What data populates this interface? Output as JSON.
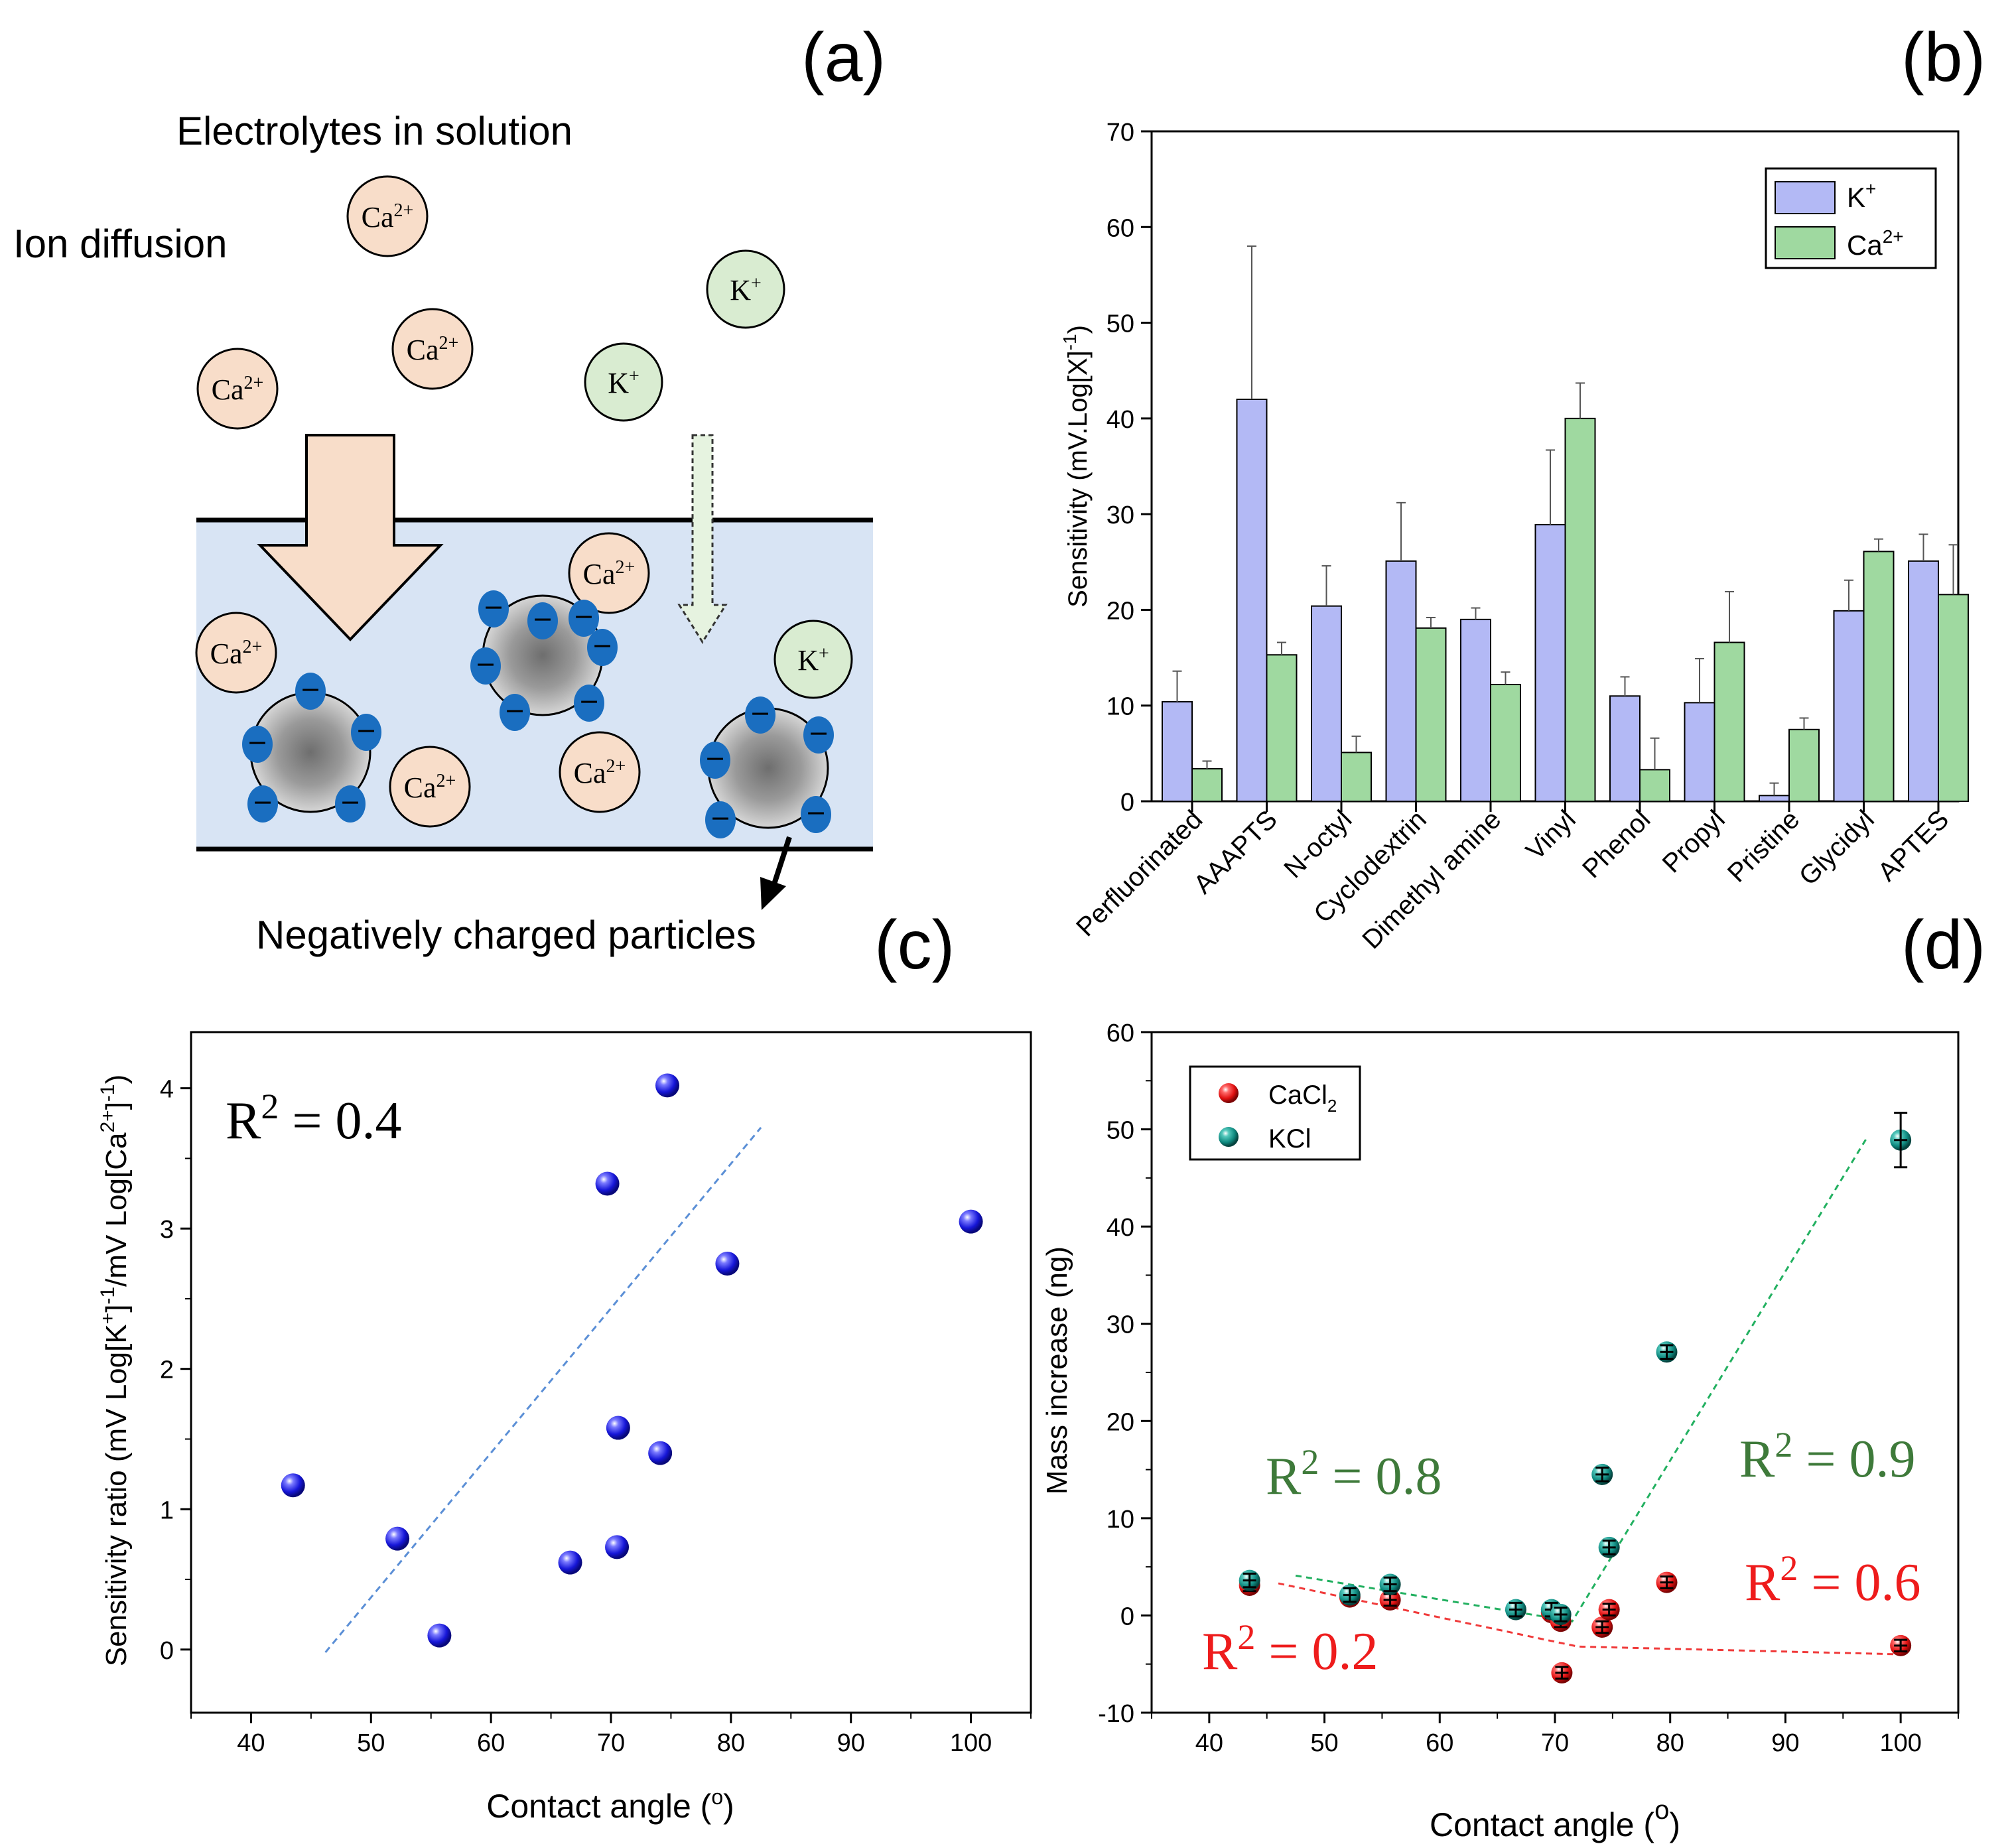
{
  "panel_labels": {
    "a": "(a)",
    "b": "(b)",
    "c": "(c)",
    "d": "(d)"
  },
  "colors": {
    "ca_ion_fill": "#f8ddc9",
    "k_ion_fill": "#d9ecd1",
    "medium_fill": "#d8e4f4",
    "arrow_fill": "#f8ddc9",
    "charge_blue": "#1a6ec0",
    "k_bar": "#b3b9f5",
    "ca_bar": "#9fd9a0",
    "scatter_blue": "#2a2ae0",
    "cacl2_red": "#e01010",
    "kcl_teal": "#0f8a80",
    "fit_blue": "#5b8fd6",
    "fit_green": "#22b060",
    "fit_red": "#f03a3a",
    "r2_green": "#3e7a3a",
    "r2_red": "#ee1c1c"
  },
  "schematic": {
    "title": "Electrolytes in solution",
    "ion_diffusion": "Ion diffusion",
    "particles_label": "Negatively charged particles",
    "ca_ion": "Ca",
    "ca_charge": "2+",
    "k_ion": "K",
    "k_charge": "+",
    "minus": "−"
  },
  "chart_data": [
    {
      "panel": "b",
      "type": "bar",
      "categories": [
        "Perfluorinated",
        "AAAPTS",
        "N-octyl",
        "Cyclodextrin",
        "Dimethyl amine",
        "Vinyl",
        "Phenol",
        "Propyl",
        "Pristine",
        "Glycidyl",
        "APTES"
      ],
      "series": [
        {
          "name": "K",
          "sup": "+",
          "values": [
            10.4,
            42,
            20.4,
            25.1,
            19,
            28.9,
            11,
            10.3,
            0.6,
            19.9,
            25.1
          ],
          "errors": [
            3.2,
            16,
            4.2,
            6.1,
            1.2,
            7.8,
            2,
            4.6,
            1.3,
            3.2,
            2.8
          ]
        },
        {
          "name": "Ca",
          "sup": "2+",
          "values": [
            3.4,
            15.3,
            5.1,
            18.1,
            12.2,
            40,
            3.3,
            16.6,
            7.5,
            26.1,
            21.6
          ],
          "errors": [
            0.8,
            1.3,
            1.7,
            1.1,
            1.3,
            3.7,
            3.3,
            5.3,
            1.2,
            1.3,
            5.2
          ]
        }
      ],
      "ylabel": "Sensitivity (mV.Log[X]",
      "ylabel_sup": "-1",
      "ylabel_close": ")",
      "ylim": [
        0,
        70
      ],
      "yticks": [
        0,
        10,
        20,
        30,
        40,
        50,
        60,
        70
      ],
      "legend": "top-right"
    },
    {
      "panel": "c",
      "type": "scatter",
      "x": [
        43.5,
        52.2,
        55.7,
        66.6,
        69.7,
        70.5,
        70.6,
        74.1,
        74.7,
        79.7,
        100
      ],
      "y": [
        1.17,
        0.79,
        0.1,
        0.62,
        3.32,
        0.73,
        1.58,
        1.4,
        4.02,
        2.75,
        3.05
      ],
      "fit": {
        "x": [
          46.2,
          82.5
        ],
        "y": [
          -0.02,
          3.72
        ]
      },
      "annotation": "R",
      "annotation_sup": "2",
      "annotation_value": " = 0.4",
      "xlabel": "Contact angle (",
      "xlabel_sup": "o",
      "xlabel_close": ")",
      "ylabel": "Sensitivity ratio (mV Log[K",
      "ylabel_sup1": "+",
      "ylabel_mid1": "]",
      "ylabel_sup2": "-1",
      "ylabel_mid2": "/mV Log[Ca",
      "ylabel_sup3": "2+",
      "ylabel_mid3": "]",
      "ylabel_sup4": "-1",
      "ylabel_close": ")",
      "xlim": [
        35,
        105
      ],
      "ylim": [
        -0.45,
        4.4
      ],
      "xticks": [
        40,
        50,
        60,
        70,
        80,
        90,
        100
      ],
      "yticks": [
        0,
        1,
        2,
        3,
        4
      ]
    },
    {
      "panel": "d",
      "type": "scatter",
      "series": [
        {
          "name": "CaCl",
          "sub": "2",
          "x": [
            43.5,
            52.2,
            55.7,
            69.7,
            70.5,
            70.6,
            74.1,
            74.7,
            79.7,
            100
          ],
          "y": [
            3.1,
            1.9,
            1.6,
            0.3,
            -0.6,
            -5.9,
            -1.2,
            0.6,
            3.4,
            -3.1
          ],
          "errors": [
            0.6,
            0.6,
            0.6,
            0.6,
            0.6,
            0.6,
            0.6,
            0.6,
            0.6,
            0.6
          ],
          "fit": {
            "x": [
              46,
              72,
              100
            ],
            "y": [
              3.3,
              -3.2,
              -4.0
            ]
          }
        },
        {
          "name": "KCl",
          "x": [
            43.5,
            52.2,
            55.7,
            66.6,
            69.7,
            70.5,
            74.1,
            74.7,
            79.7,
            100
          ],
          "y": [
            3.6,
            2.1,
            3.2,
            0.6,
            0.6,
            0.1,
            14.5,
            7.0,
            27.1,
            48.9
          ],
          "errors": [
            0.7,
            0.7,
            0.7,
            0.7,
            0.7,
            0.7,
            0.7,
            0.7,
            0.7,
            2.8
          ],
          "fit": {
            "x": [
              47.5,
              71.5,
              97
            ],
            "y": [
              4.1,
              -0.6,
              49
            ]
          }
        }
      ],
      "annotations": [
        {
          "text": "R",
          "sup": "2",
          "value": " = 0.8",
          "color_key": "r2_green"
        },
        {
          "text": "R",
          "sup": "2",
          "value": " = 0.9",
          "color_key": "r2_green"
        },
        {
          "text": "R",
          "sup": "2",
          "value": " = 0.6",
          "color_key": "r2_red"
        },
        {
          "text": "R",
          "sup": "2",
          "value": " = 0.2",
          "color_key": "r2_red"
        }
      ],
      "xlabel": "Contact angle (",
      "xlabel_sup": "o",
      "xlabel_close": ")",
      "ylabel": "Mass increase (ng)",
      "xlim": [
        35,
        105
      ],
      "ylim": [
        -10,
        60
      ],
      "xticks": [
        40,
        50,
        60,
        70,
        80,
        90,
        100
      ],
      "yticks": [
        -10,
        0,
        10,
        20,
        30,
        40,
        50,
        60
      ],
      "legend": "top-left"
    }
  ]
}
